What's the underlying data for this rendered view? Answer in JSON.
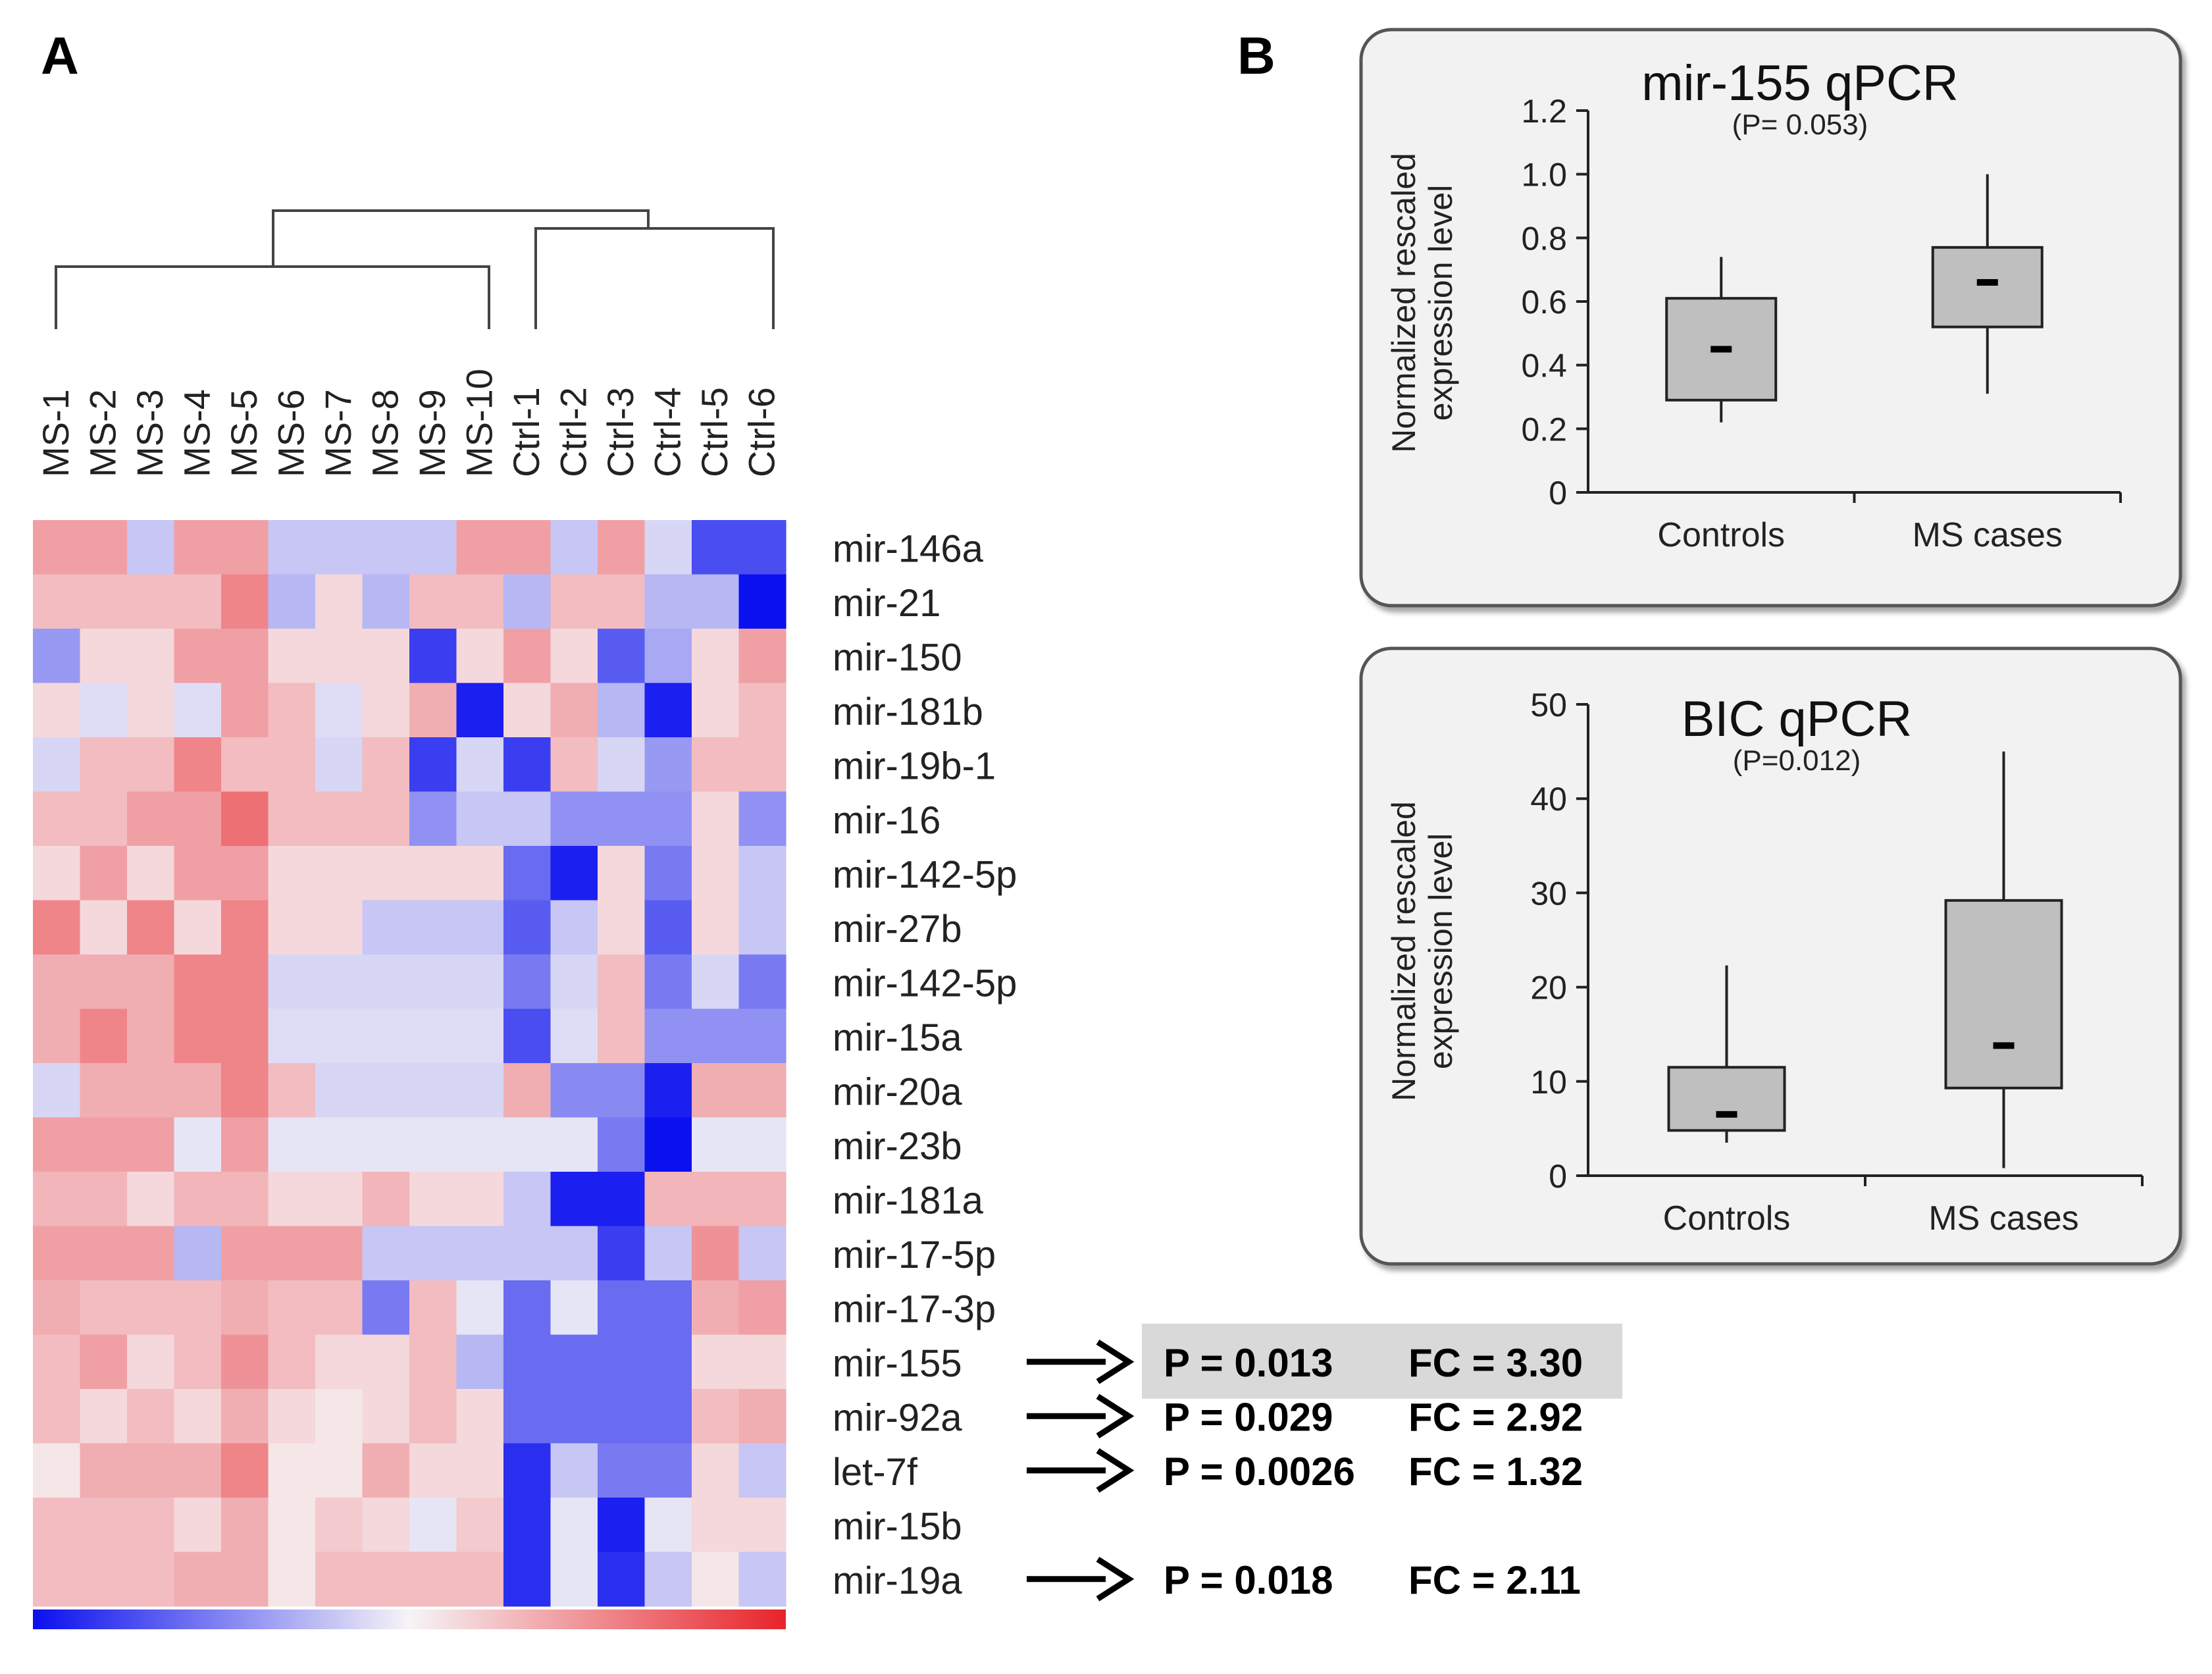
{
  "panels": {
    "a": "A",
    "b": "B"
  },
  "samples": [
    "MS-1",
    "MS-2",
    "MS-3",
    "MS-4",
    "MS-5",
    "MS-6",
    "MS-7",
    "MS-8",
    "MS-9",
    "MS-10",
    "Ctrl-1",
    "Ctrl-2",
    "Ctrl-3",
    "Ctrl-4",
    "Ctrl-5",
    "Ctrl-6"
  ],
  "mirnas": [
    "mir-146a",
    "mir-21",
    "mir-150",
    "mir-181b",
    "mir-19b-1",
    "mir-16",
    "mir-142-5p",
    "mir-27b",
    "mir-142-5p",
    "mir-15a",
    "mir-20a",
    "mir-23b",
    "mir-181a",
    "mir-17-5p",
    "mir-17-3p",
    "mir-155",
    "mir-92a",
    "let-7f",
    "mir-15b",
    "mir-19a"
  ],
  "stats": [
    {
      "row": 15,
      "p": "P = 0.013",
      "fc": "FC = 3.30",
      "highlight": true
    },
    {
      "row": 16,
      "p": "P = 0.029",
      "fc": "FC = 2.92",
      "highlight": false
    },
    {
      "row": 17,
      "p": "P = 0.0026",
      "fc": "FC = 1.32",
      "highlight": false
    },
    {
      "row": 19,
      "p": "P = 0.018",
      "fc": "FC = 2.11",
      "highlight": false
    }
  ],
  "colors": {
    "heat_red": "#e8232a",
    "heat_white": "#f6f4f6",
    "heat_blue": "#0b10ee",
    "box_fill": "#bfbfbf",
    "panel_bg": "#f2f2f2",
    "stat_highlight": "#d9d9d9"
  },
  "chart_data": [
    {
      "type": "heatmap",
      "rows": "mirnas",
      "columns": "samples",
      "color_scale": [
        "#0b10ee",
        "#f6f4f6",
        "#e8232a"
      ],
      "value_range": [
        -3,
        3
      ],
      "values": [
        [
          1.2,
          1.2,
          -0.6,
          1.2,
          1.2,
          -0.6,
          -0.6,
          -0.6,
          -0.6,
          1.2,
          1.2,
          -0.6,
          1.2,
          -0.4,
          -2.2,
          -2.2
        ],
        [
          0.8,
          0.8,
          0.8,
          0.8,
          1.6,
          -0.8,
          0.4,
          -0.8,
          0.8,
          0.8,
          -0.8,
          0.8,
          0.8,
          -0.8,
          -0.8,
          -3.0
        ],
        [
          -1.2,
          0.4,
          0.4,
          1.2,
          1.2,
          0.4,
          0.4,
          0.4,
          -2.4,
          0.4,
          1.2,
          0.4,
          -2.0,
          -1.0,
          0.4,
          1.2
        ],
        [
          0.4,
          -0.3,
          0.4,
          -0.3,
          1.2,
          0.8,
          -0.3,
          0.4,
          1.0,
          -2.8,
          0.4,
          1.0,
          -0.8,
          -2.8,
          0.4,
          0.8
        ],
        [
          -0.4,
          0.8,
          0.8,
          1.6,
          0.8,
          0.8,
          -0.4,
          0.8,
          -2.4,
          -0.4,
          -2.4,
          0.8,
          -0.4,
          -1.2,
          0.8,
          0.8
        ],
        [
          0.8,
          0.8,
          1.2,
          1.2,
          1.9,
          0.8,
          0.8,
          0.8,
          -1.3,
          -0.6,
          -0.6,
          -1.3,
          -1.3,
          -1.3,
          0.4,
          -1.3
        ],
        [
          0.4,
          1.2,
          0.4,
          1.2,
          1.2,
          0.4,
          0.4,
          0.4,
          0.4,
          0.4,
          -1.8,
          -2.8,
          0.4,
          -1.6,
          0.4,
          -0.6
        ],
        [
          1.6,
          0.4,
          1.6,
          0.4,
          1.6,
          0.4,
          0.4,
          -0.6,
          -0.6,
          -0.6,
          -2.0,
          -0.6,
          0.4,
          -2.0,
          0.4,
          -0.6
        ],
        [
          1.0,
          1.0,
          1.0,
          1.6,
          1.6,
          -0.4,
          -0.4,
          -0.4,
          -0.4,
          -0.4,
          -1.6,
          -0.4,
          0.8,
          -1.6,
          -0.4,
          -1.6
        ],
        [
          1.0,
          1.6,
          1.0,
          1.6,
          1.6,
          -0.3,
          -0.3,
          -0.3,
          -0.3,
          -0.3,
          -2.2,
          -0.3,
          0.8,
          -1.3,
          -1.3,
          -1.3
        ],
        [
          -0.4,
          1.0,
          1.0,
          1.0,
          1.6,
          0.8,
          -0.4,
          -0.4,
          -0.4,
          -0.4,
          1.0,
          -1.4,
          -1.4,
          -2.8,
          1.0,
          1.0
        ],
        [
          1.2,
          1.2,
          1.2,
          -0.2,
          1.2,
          -0.2,
          -0.2,
          -0.2,
          -0.2,
          -0.2,
          -0.2,
          -0.2,
          -1.6,
          -3.0,
          -0.2,
          -0.2
        ],
        [
          0.9,
          0.9,
          0.4,
          0.9,
          0.9,
          0.4,
          0.4,
          0.9,
          0.4,
          0.4,
          -0.6,
          -2.8,
          -2.8,
          0.9,
          0.9,
          0.9
        ],
        [
          1.2,
          1.2,
          1.2,
          -0.8,
          1.2,
          1.2,
          1.2,
          -0.6,
          -0.6,
          -0.6,
          -0.6,
          -0.6,
          -2.4,
          -0.6,
          1.4,
          -0.6
        ],
        [
          1.0,
          0.8,
          0.8,
          0.8,
          1.0,
          0.8,
          0.8,
          -1.6,
          0.8,
          -0.2,
          -1.8,
          -0.2,
          -1.8,
          -1.8,
          1.0,
          1.2
        ],
        [
          0.8,
          1.2,
          0.4,
          0.8,
          1.4,
          0.8,
          0.4,
          0.4,
          0.8,
          -0.8,
          -1.8,
          -1.8,
          -1.8,
          -1.8,
          0.4,
          0.4
        ],
        [
          0.8,
          0.4,
          0.8,
          0.4,
          1.0,
          0.4,
          0.2,
          0.4,
          0.8,
          0.4,
          -1.8,
          -1.8,
          -1.8,
          -1.8,
          0.8,
          1.0
        ],
        [
          0.2,
          1.0,
          1.0,
          1.0,
          1.6,
          0.2,
          0.2,
          1.0,
          0.4,
          0.4,
          -2.6,
          -0.6,
          -1.6,
          -1.6,
          0.4,
          -0.6
        ],
        [
          0.8,
          0.8,
          0.8,
          0.4,
          1.0,
          0.2,
          0.6,
          0.4,
          -0.2,
          0.6,
          -2.6,
          -0.2,
          -2.8,
          -0.2,
          0.4,
          0.4
        ],
        [
          0.8,
          0.8,
          0.8,
          1.0,
          1.0,
          0.2,
          0.8,
          0.8,
          0.8,
          0.8,
          -2.6,
          -0.2,
          -2.6,
          -0.6,
          0.2,
          -0.6
        ]
      ]
    },
    {
      "type": "box",
      "title": "mir-155 qPCR",
      "subtitle": "(P= 0.053)",
      "ylabel_lines": [
        "Normalized rescaled",
        "expression level"
      ],
      "ylim": [
        0,
        1.2
      ],
      "yticks": [
        "0",
        "0.2",
        "0.4",
        "0.6",
        "0.8",
        "1.0",
        "1.2"
      ],
      "categories": [
        "Controls",
        "MS cases"
      ],
      "boxes": [
        {
          "min": 0.22,
          "q1": 0.29,
          "median": 0.45,
          "q3": 0.61,
          "max": 0.74
        },
        {
          "min": 0.31,
          "q1": 0.52,
          "median": 0.66,
          "q3": 0.77,
          "max": 1.0
        }
      ]
    },
    {
      "type": "box",
      "title": "BIC qPCR",
      "subtitle": "(P=0.012)",
      "ylabel_lines": [
        "Normalized rescaled",
        "expression level"
      ],
      "ylim": [
        0,
        50
      ],
      "yticks": [
        "0",
        "10",
        "20",
        "30",
        "40",
        "50"
      ],
      "categories": [
        "Controls",
        "MS cases"
      ],
      "boxes": [
        {
          "min": 3.5,
          "q1": 4.8,
          "median": 6.5,
          "q3": 11.5,
          "max": 22.3
        },
        {
          "min": 0.8,
          "q1": 9.3,
          "median": 13.8,
          "q3": 29.2,
          "max": 45.0
        }
      ]
    }
  ]
}
